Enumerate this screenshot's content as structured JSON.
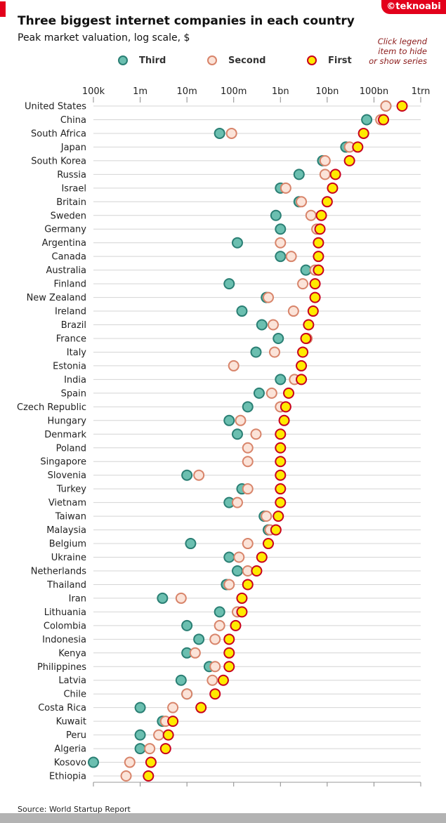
{
  "header": {
    "title": "Three biggest internet companies in each country",
    "subtitle": "Peak market valuation, log scale, $",
    "logo": "©teknoabi",
    "note_lines": [
      "Click legend",
      "item to hide",
      "or show series"
    ]
  },
  "legend": {
    "items": [
      {
        "label": "Third",
        "icon": "circle-marker",
        "fill": "#6bbfb0",
        "stroke": "#2a7f74"
      },
      {
        "label": "Second",
        "icon": "circle-marker",
        "fill": "#fbe3d8",
        "stroke": "#d8846a"
      },
      {
        "label": "First",
        "icon": "circle-marker",
        "fill": "#ffea00",
        "stroke": "#c8001e"
      }
    ]
  },
  "source": "Source: World Startup Report",
  "chart_data": {
    "type": "scatter",
    "title": "Three biggest internet companies in each country",
    "subtitle": "Peak market valuation, log scale, $",
    "x_scale": "log",
    "xlim": [
      100000,
      1000000000000
    ],
    "x_ticks": [
      {
        "value": 100000,
        "label": "100k"
      },
      {
        "value": 1000000,
        "label": "1m"
      },
      {
        "value": 10000000,
        "label": "10m"
      },
      {
        "value": 100000000,
        "label": "100m"
      },
      {
        "value": 1000000000,
        "label": "1bn"
      },
      {
        "value": 10000000000,
        "label": "10bn"
      },
      {
        "value": 100000000000,
        "label": "100bn"
      },
      {
        "value": 1000000000000,
        "label": "1trn"
      }
    ],
    "grid": true,
    "legend_position": "top",
    "categories": [
      "United States",
      "China",
      "South Africa",
      "Japan",
      "South Korea",
      "Russia",
      "Israel",
      "Britain",
      "Sweden",
      "Germany",
      "Argentina",
      "Canada",
      "Australia",
      "Finland",
      "New Zealand",
      "Ireland",
      "Brazil",
      "France",
      "Italy",
      "Estonia",
      "India",
      "Spain",
      "Czech Republic",
      "Hungary",
      "Denmark",
      "Poland",
      "Singapore",
      "Slovenia",
      "Turkey",
      "Vietnam",
      "Taiwan",
      "Malaysia",
      "Belgium",
      "Ukraine",
      "Netherlands",
      "Thailand",
      "Iran",
      "Lithuania",
      "Colombia",
      "Indonesia",
      "Kenya",
      "Philippines",
      "Latvia",
      "Chile",
      "Costa Rica",
      "Kuwait",
      "Peru",
      "Algeria",
      "Kosovo",
      "Ethiopia"
    ],
    "series": [
      {
        "name": "Third",
        "color": "#6bbfb0",
        "stroke": "#2a7f74",
        "values": [
          180000000000.0,
          70000000000.0,
          50000000.0,
          25000000000.0,
          8000000000.0,
          2500000000.0,
          1000000000.0,
          2500000000.0,
          800000000.0,
          1000000000.0,
          120000000.0,
          1000000000.0,
          3500000000.0,
          80000000.0,
          500000000.0,
          150000000.0,
          400000000.0,
          900000000.0,
          300000000.0,
          null,
          1000000000.0,
          350000000.0,
          200000000.0,
          80000000.0,
          120000000.0,
          null,
          null,
          10000000.0,
          150000000.0,
          80000000.0,
          450000000.0,
          550000000.0,
          12000000.0,
          80000000.0,
          120000000.0,
          70000000.0,
          3000000.0,
          50000000.0,
          10000000.0,
          18000000.0,
          10000000.0,
          30000000.0,
          7500000.0,
          10000000.0,
          1000000.0,
          3000000.0,
          1000000.0,
          1000000.0,
          100000.0,
          null
        ]
      },
      {
        "name": "Second",
        "color": "#fbe3d8",
        "stroke": "#d8846a",
        "values": [
          180000000000.0,
          140000000000.0,
          90000000.0,
          30000000000.0,
          9000000000.0,
          9000000000.0,
          1300000000.0,
          2800000000.0,
          4500000000.0,
          6000000000.0,
          1000000000.0,
          1700000000.0,
          5500000000.0,
          3000000000.0,
          550000000.0,
          1900000000.0,
          700000000.0,
          3700000000.0,
          750000000.0,
          100000000.0,
          2000000000.0,
          650000000.0,
          1000000000.0,
          140000000.0,
          300000000.0,
          200000000.0,
          200000000.0,
          18000000.0,
          200000000.0,
          120000000.0,
          500000000.0,
          600000000.0,
          200000000.0,
          130000000.0,
          200000000.0,
          80000000.0,
          7500000.0,
          120000000.0,
          50000000.0,
          40000000.0,
          15000000.0,
          40000000.0,
          35000000.0,
          10000000.0,
          5000000.0,
          3500000.0,
          2500000.0,
          1600000.0,
          600000.0,
          500000.0
        ]
      },
      {
        "name": "First",
        "color": "#ffea00",
        "stroke": "#c8001e",
        "values": [
          400000000000.0,
          160000000000.0,
          60000000000.0,
          45000000000.0,
          30000000000.0,
          15000000000.0,
          13000000000.0,
          10000000000.0,
          7500000000.0,
          7000000000.0,
          6500000000.0,
          6500000000.0,
          6500000000.0,
          5500000000.0,
          5500000000.0,
          5000000000.0,
          4000000000.0,
          3500000000.0,
          3000000000.0,
          2800000000.0,
          2800000000.0,
          1500000000.0,
          1300000000.0,
          1200000000.0,
          1000000000.0,
          1000000000.0,
          1000000000.0,
          1000000000.0,
          1000000000.0,
          1000000000.0,
          900000000.0,
          800000000.0,
          550000000.0,
          400000000.0,
          310000000.0,
          200000000.0,
          150000000.0,
          150000000.0,
          110000000.0,
          80000000.0,
          80000000.0,
          80000000.0,
          60000000.0,
          40000000.0,
          20000000.0,
          5000000.0,
          4000000.0,
          3500000.0,
          1700000.0,
          1500000.0
        ]
      }
    ]
  }
}
